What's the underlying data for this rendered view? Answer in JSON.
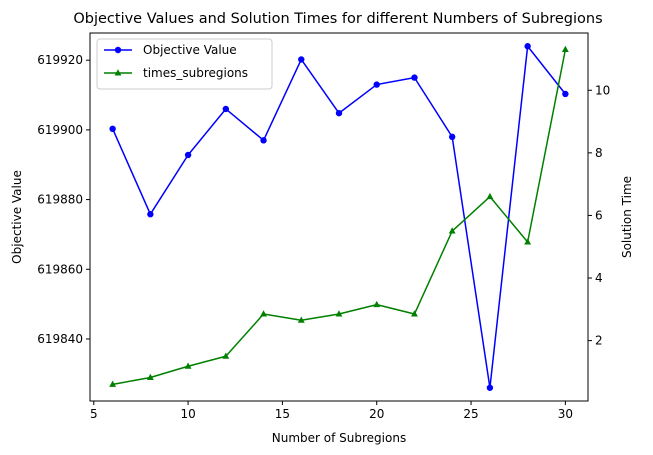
{
  "chart_data": {
    "type": "line",
    "title": "Objective Values and Solution Times for different Numbers of Subregions",
    "xlabel": "Number of Subregions",
    "ylabel_left": "Objective Value",
    "ylabel_right": "Solution Time",
    "xlim": [
      4.8,
      31.2
    ],
    "ylim_left": [
      619822.2,
      619927.8
    ],
    "ylim_right": [
      0.07,
      11.83
    ],
    "x_ticks": [
      5,
      10,
      15,
      20,
      25,
      30
    ],
    "y_left_ticks": [
      619840,
      619860,
      619880,
      619900,
      619920
    ],
    "y_right_ticks": [
      2,
      4,
      6,
      8,
      10
    ],
    "grid": false,
    "legend_position": "top-left",
    "x": [
      6,
      8,
      10,
      12,
      14,
      16,
      18,
      20,
      22,
      24,
      26,
      28,
      30
    ],
    "series": [
      {
        "name": "Objective Value",
        "axis": "left",
        "color": "#0000ff",
        "marker": "circle",
        "values": [
          619900.3,
          619875.8,
          619892.8,
          619906.0,
          619897.0,
          619920.2,
          619904.8,
          619913.0,
          619915.0,
          619898.0,
          619826.0,
          619924.0,
          619910.3
        ]
      },
      {
        "name": "times_subregions",
        "axis": "right",
        "color": "#008000",
        "marker": "triangle",
        "values": [
          0.6,
          0.82,
          1.18,
          1.5,
          2.85,
          2.65,
          2.85,
          3.15,
          2.85,
          5.5,
          6.6,
          5.15,
          11.3
        ]
      }
    ]
  }
}
